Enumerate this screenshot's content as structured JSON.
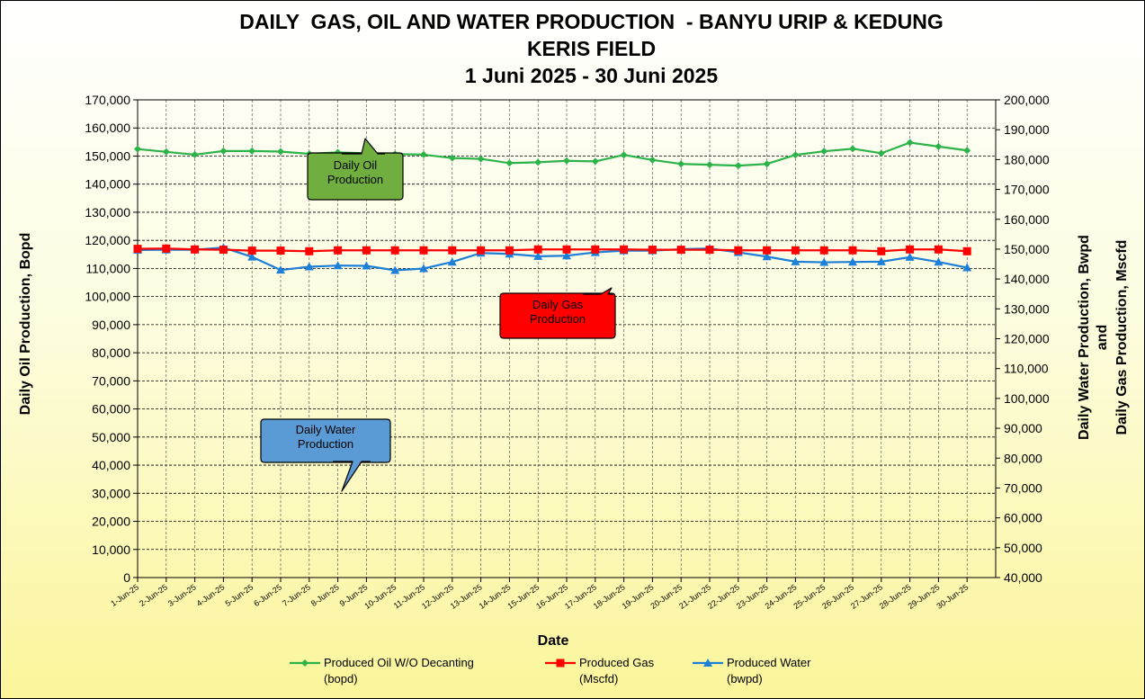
{
  "chart_data": {
    "type": "line",
    "title": [
      "DAILY  GAS, OIL AND WATER PRODUCTION  - BANYU URIP & KEDUNG",
      "KERIS FIELD",
      "1 Juni 2025 - 30 Juni 2025"
    ],
    "xlabel": "Date",
    "ylabel_left": "Daily Oil Production, Bopd",
    "ylabel_right": [
      "Daily Water  Production, Bwpd",
      "and",
      "Daily Gas Production, Mscfd"
    ],
    "ylim_left": [
      0,
      170000
    ],
    "ylim_right": [
      40000,
      200000
    ],
    "yticks_left": [
      "0",
      "10,000",
      "20,000",
      "30,000",
      "40,000",
      "50,000",
      "60,000",
      "70,000",
      "80,000",
      "90,000",
      "100,000",
      "110,000",
      "120,000",
      "130,000",
      "140,000",
      "150,000",
      "160,000",
      "170,000"
    ],
    "yticks_right": [
      "40,000",
      "50,000",
      "60,000",
      "70,000",
      "80,000",
      "90,000",
      "100,000",
      "110,000",
      "120,000",
      "130,000",
      "140,000",
      "150,000",
      "160,000",
      "170,000",
      "180,000",
      "190,000",
      "200,000"
    ],
    "categories": [
      "1-Jun-25",
      "2-Jun-25",
      "3-Jun-25",
      "4-Jun-25",
      "5-Jun-25",
      "6-Jun-25",
      "7-Jun-25",
      "8-Jun-25",
      "9-Jun-25",
      "10-Jun-25",
      "11-Jun-25",
      "12-Jun-25",
      "13-Jun-25",
      "14-Jun-25",
      "15-Jun-25",
      "16-Jun-25",
      "17-Jun-25",
      "18-Jun-25",
      "19-Jun-25",
      "20-Jun-25",
      "21-Jun-25",
      "22-Jun-25",
      "23-Jun-25",
      "24-Jun-25",
      "25-Jun-25",
      "26-Jun-25",
      "27-Jun-25",
      "28-Jun-25",
      "29-Jun-25",
      "30-Jun-25"
    ],
    "grid": true,
    "legend_position": "bottom",
    "series": [
      {
        "name": "Produced Oil W/O Decanting",
        "unit": "(bopd)",
        "axis": "left",
        "color": "#2db34a",
        "marker": "diamond",
        "values": [
          152500,
          151500,
          150500,
          151800,
          151800,
          151600,
          150800,
          151300,
          151000,
          150700,
          150500,
          149300,
          149000,
          147500,
          147800,
          148300,
          148100,
          150400,
          148600,
          147200,
          146900,
          146600,
          147200,
          150400,
          151700,
          152600,
          151000,
          154800,
          153400,
          152000
        ]
      },
      {
        "name": "Produced Gas",
        "unit": "(Mscfd)",
        "axis": "right",
        "color": "#ff0000",
        "marker": "square",
        "values": [
          150100,
          150200,
          149900,
          149800,
          149500,
          149500,
          149300,
          149600,
          149600,
          149600,
          149600,
          149600,
          149600,
          149600,
          149900,
          149900,
          149900,
          149900,
          149800,
          149800,
          149800,
          149600,
          149600,
          149600,
          149600,
          149600,
          149300,
          149900,
          149900,
          149300
        ]
      },
      {
        "name": "Produced Water",
        "unit": "(bwpd)",
        "axis": "right",
        "color": "#1e7fd6",
        "marker": "triangle",
        "values": [
          149700,
          149800,
          149800,
          150500,
          147400,
          143000,
          144100,
          144500,
          144400,
          142900,
          143500,
          145700,
          148700,
          148400,
          147600,
          147800,
          148900,
          149500,
          149500,
          150000,
          150200,
          148900,
          147500,
          145800,
          145600,
          145700,
          145800,
          147300,
          145700,
          143800
        ]
      }
    ],
    "callouts": [
      {
        "text": [
          "Daily Oil",
          "Production"
        ],
        "color": "#6fae3f"
      },
      {
        "text": [
          "Daily Gas",
          "Production"
        ],
        "color": "#ff0000"
      },
      {
        "text": [
          "Daily Water",
          "Production"
        ],
        "color": "#5b9bd5"
      }
    ]
  }
}
